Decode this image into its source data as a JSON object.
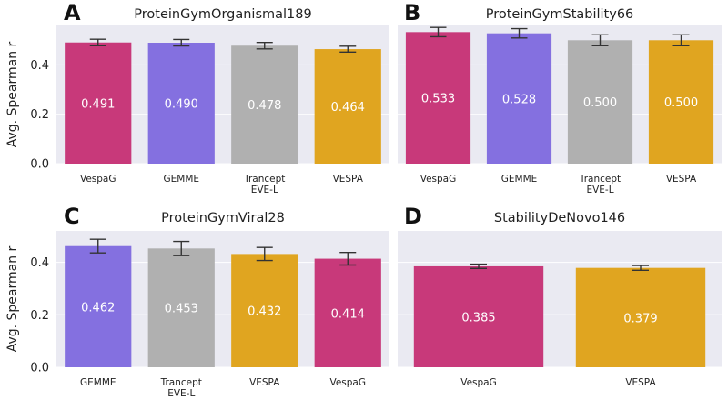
{
  "colors": {
    "VespaG": "#c8397a",
    "GEMME": "#8470e0",
    "Tracept EVE-L": "#b0b0b0",
    "VESPA": "#e0a520"
  },
  "chart_data": [
    {
      "type": "bar",
      "letter": "A",
      "title": "ProteinGymOrganismal189",
      "ylabel": "Avg. Spearman r",
      "ylim": [
        0,
        0.56
      ],
      "yticks": [
        "0.0",
        "0.2",
        "0.4"
      ],
      "ytick_values": [
        0,
        0.2,
        0.4
      ],
      "categories": [
        [
          "VespaG"
        ],
        [
          "GEMME"
        ],
        [
          "Trancept",
          "EVE-L"
        ],
        [
          "VESPA"
        ]
      ],
      "color_keys": [
        "VespaG",
        "GEMME",
        "Tracept EVE-L",
        "VESPA"
      ],
      "values": [
        0.491,
        0.49,
        0.478,
        0.464
      ],
      "labels": [
        "0.491",
        "0.490",
        "0.478",
        "0.464"
      ],
      "errors": [
        0.013,
        0.013,
        0.013,
        0.012
      ]
    },
    {
      "type": "bar",
      "letter": "B",
      "title": "ProteinGymStability66",
      "ylabel": "",
      "ylim": [
        0,
        0.56
      ],
      "yticks": [],
      "ytick_values": [
        0,
        0.2,
        0.4
      ],
      "categories": [
        [
          "VespaG"
        ],
        [
          "GEMME"
        ],
        [
          "Trancept",
          "EVE-L"
        ],
        [
          "VESPA"
        ]
      ],
      "color_keys": [
        "VespaG",
        "GEMME",
        "Tracept EVE-L",
        "VESPA"
      ],
      "values": [
        0.533,
        0.528,
        0.5,
        0.5
      ],
      "labels": [
        "0.533",
        "0.528",
        "0.500",
        "0.500"
      ],
      "errors": [
        0.019,
        0.019,
        0.022,
        0.022
      ]
    },
    {
      "type": "bar",
      "letter": "C",
      "title": "ProteinGymViral28",
      "ylabel": "Avg. Spearman r",
      "ylim": [
        0,
        0.52
      ],
      "yticks": [
        "0.0",
        "0.2",
        "0.4"
      ],
      "ytick_values": [
        0,
        0.2,
        0.4
      ],
      "categories": [
        [
          "GEMME"
        ],
        [
          "Trancept",
          "EVE-L"
        ],
        [
          "VESPA"
        ],
        [
          "VespaG"
        ]
      ],
      "color_keys": [
        "GEMME",
        "Tracept EVE-L",
        "VESPA",
        "VespaG"
      ],
      "values": [
        0.462,
        0.453,
        0.432,
        0.414
      ],
      "labels": [
        "0.462",
        "0.453",
        "0.432",
        "0.414"
      ],
      "errors": [
        0.026,
        0.027,
        0.025,
        0.024
      ]
    },
    {
      "type": "bar",
      "letter": "D",
      "title": "StabilityDeNovo146",
      "ylabel": "",
      "ylim": [
        0,
        0.52
      ],
      "yticks": [],
      "ytick_values": [
        0,
        0.2,
        0.4
      ],
      "categories": [
        [
          "VespaG"
        ],
        [
          "VESPA"
        ]
      ],
      "color_keys": [
        "VespaG",
        "VESPA"
      ],
      "values": [
        0.385,
        0.379
      ],
      "labels": [
        "0.385",
        "0.379"
      ],
      "errors": [
        0.008,
        0.009
      ]
    }
  ]
}
